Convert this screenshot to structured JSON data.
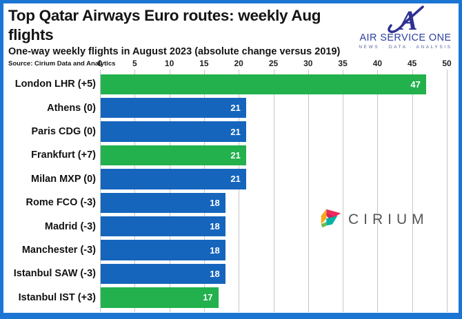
{
  "frame": {
    "border_color": "#1b75d2",
    "background": "#ffffff"
  },
  "header": {
    "title": "Top Qatar Airways Euro routes: weekly Aug flights",
    "subtitle": "One-way weekly flights in August 2023 (absolute change versus 2019)",
    "source": "Source: Cirium Data and Analytics"
  },
  "logos": {
    "air_service_one": {
      "name": "AIR SERVICE ONE",
      "tagline": "NEWS · DATA · ANALYSIS",
      "icon": "air-service-one-stylized-a-swoosh-icon",
      "color": "#2b3f9f"
    },
    "cirium": {
      "name": "CIRIUM",
      "icon": "cirium-folded-arrow-icon",
      "text_color": "#55565a",
      "icon_colors": [
        "#ee2a5b",
        "#d81f5a",
        "#f5a81c",
        "#00b3a6",
        "#6abf4b"
      ]
    }
  },
  "chart_data": {
    "type": "bar",
    "orientation": "horizontal",
    "title": "Top Qatar Airways Euro routes: weekly Aug flights",
    "subtitle": "One-way weekly flights in August 2023 (absolute change versus 2019)",
    "source": "Source: Cirium Data and Analytics",
    "categories": [
      "London LHR (+5)",
      "Athens (0)",
      "Paris CDG (0)",
      "Frankfurt (+7)",
      "Milan MXP (0)",
      "Rome FCO (-3)",
      "Madrid (-3)",
      "Manchester (-3)",
      "Istanbul SAW (-3)",
      "Istanbul IST (+3)"
    ],
    "values": [
      47,
      21,
      21,
      21,
      21,
      18,
      18,
      18,
      18,
      17
    ],
    "bar_color_keys": [
      "green",
      "blue",
      "blue",
      "green",
      "blue",
      "blue",
      "blue",
      "blue",
      "blue",
      "green"
    ],
    "palette": {
      "green": "#22b14c",
      "blue": "#1565bd"
    },
    "value_label_color": "#ffffff",
    "xlabel": "",
    "ylabel": "",
    "xlim": [
      0,
      50
    ],
    "x_ticks": [
      0,
      5,
      10,
      15,
      20,
      25,
      30,
      35,
      40,
      45,
      50
    ],
    "axis_position": "top",
    "grid": true,
    "legend": false
  }
}
